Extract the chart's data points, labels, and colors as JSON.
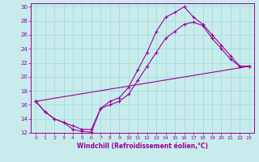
{
  "xlabel": "Windchill (Refroidissement éolien,°C)",
  "background_color": "#c8ecec",
  "line_color": "#990099",
  "grid_color": "#aadddd",
  "xlim": [
    -0.5,
    23.5
  ],
  "ylim": [
    12,
    30.5
  ],
  "xticks": [
    0,
    1,
    2,
    3,
    4,
    5,
    6,
    7,
    8,
    9,
    10,
    11,
    12,
    13,
    14,
    15,
    16,
    17,
    18,
    19,
    20,
    21,
    22,
    23
  ],
  "yticks": [
    12,
    14,
    16,
    18,
    20,
    22,
    24,
    26,
    28,
    30
  ],
  "line1_x": [
    0,
    1,
    2,
    3,
    4,
    5,
    6,
    7,
    8,
    9,
    10,
    11,
    12,
    13,
    14,
    15,
    16,
    17,
    18,
    19,
    20,
    21,
    22,
    23
  ],
  "line1_y": [
    16.5,
    15.0,
    14.0,
    13.5,
    12.5,
    12.2,
    12.1,
    15.5,
    16.5,
    17.0,
    18.5,
    21.0,
    23.5,
    26.5,
    28.5,
    29.2,
    30.0,
    28.5,
    27.5,
    26.0,
    24.5,
    23.0,
    21.5,
    21.5
  ],
  "line2_x": [
    0,
    1,
    2,
    3,
    4,
    5,
    6,
    7,
    8,
    9,
    10,
    11,
    12,
    13,
    14,
    15,
    16,
    17,
    18,
    19,
    20,
    21,
    22,
    23
  ],
  "line2_y": [
    16.5,
    15.0,
    14.0,
    13.5,
    13.0,
    12.5,
    12.5,
    15.5,
    16.0,
    16.5,
    17.5,
    19.5,
    21.5,
    23.5,
    25.5,
    26.5,
    27.5,
    27.8,
    27.3,
    25.5,
    24.0,
    22.5,
    21.5,
    21.5
  ],
  "line3_x": [
    0,
    23
  ],
  "line3_y": [
    16.5,
    21.5
  ]
}
